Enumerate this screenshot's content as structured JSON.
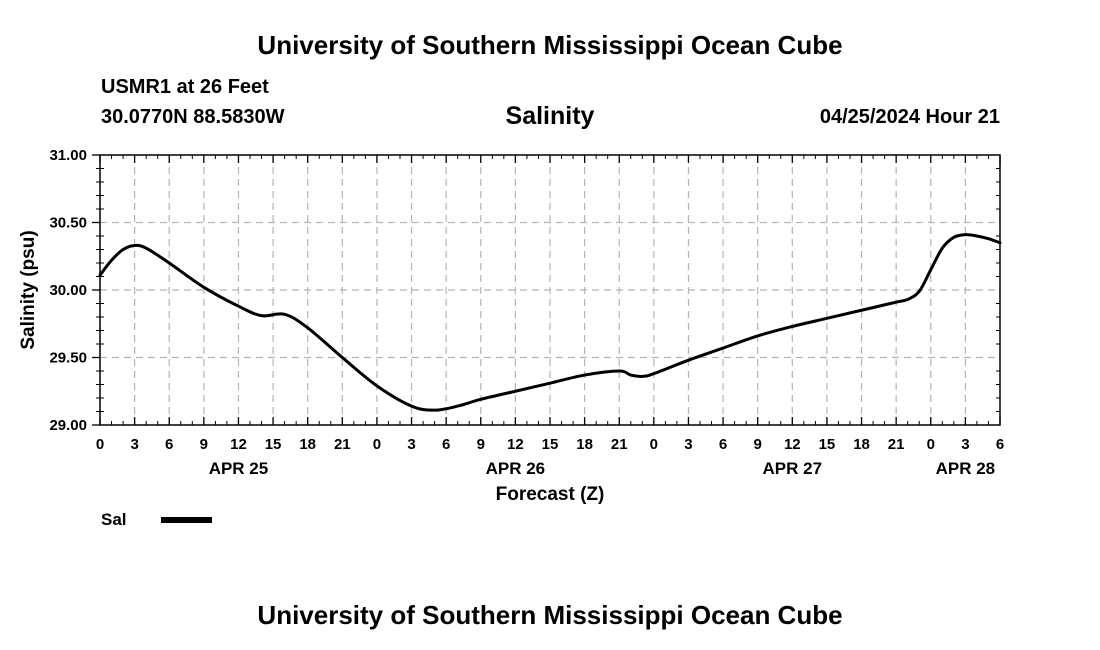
{
  "header": {
    "title": "University of Southern Mississippi Ocean Cube",
    "station": "USMR1 at 26 Feet",
    "coords": "30.0770N  88.5830W",
    "date_label": "04/25/2024 Hour 21"
  },
  "footer": {
    "title": "University of Southern Mississippi Ocean Cube"
  },
  "legend": {
    "label": "Sal"
  },
  "colors": {
    "line": "#000000",
    "grid": "#b4b4b4",
    "background": "#ffffff"
  },
  "chart_data": {
    "type": "line",
    "title": "Salinity",
    "xlabel": "Forecast (Z)",
    "ylabel": "Salinity (psu)",
    "x_unit": "hours from APR 25 00Z",
    "xlim": [
      0,
      78
    ],
    "ylim": [
      29.0,
      31.0
    ],
    "y_ticks": [
      "29.00",
      "29.50",
      "30.00",
      "30.50",
      "31.00"
    ],
    "y_tick_values": [
      29.0,
      29.5,
      30.0,
      30.5,
      31.0
    ],
    "x_tick_labels": [
      "0",
      "3",
      "6",
      "9",
      "12",
      "15",
      "18",
      "21",
      "0",
      "3",
      "6",
      "9",
      "12",
      "15",
      "18",
      "21",
      "0",
      "3",
      "6",
      "9",
      "12",
      "15",
      "18",
      "21",
      "0",
      "3",
      "6"
    ],
    "date_labels": [
      {
        "label": "APR 25",
        "hour": 12
      },
      {
        "label": "APR 26",
        "hour": 36
      },
      {
        "label": "APR 27",
        "hour": 60
      },
      {
        "label": "APR 28",
        "hour": 75
      }
    ],
    "grid": true,
    "series": [
      {
        "name": "Sal",
        "x": [
          0,
          1,
          2,
          3,
          4,
          6,
          9,
          12,
          14,
          16,
          18,
          21,
          24,
          27,
          29,
          31,
          33,
          36,
          39,
          42,
          45,
          46,
          47,
          48,
          51,
          54,
          57,
          60,
          63,
          66,
          69,
          70,
          71,
          72,
          73,
          74,
          75,
          76,
          77,
          78
        ],
        "y": [
          30.11,
          30.22,
          30.3,
          30.33,
          30.31,
          30.2,
          30.02,
          29.88,
          29.81,
          29.82,
          29.72,
          29.5,
          29.29,
          29.14,
          29.11,
          29.14,
          29.19,
          29.25,
          29.31,
          29.37,
          29.4,
          29.37,
          29.36,
          29.38,
          29.48,
          29.57,
          29.66,
          29.73,
          29.79,
          29.85,
          29.91,
          29.93,
          29.99,
          30.15,
          30.31,
          30.39,
          30.41,
          30.4,
          30.38,
          30.35
        ]
      }
    ]
  }
}
